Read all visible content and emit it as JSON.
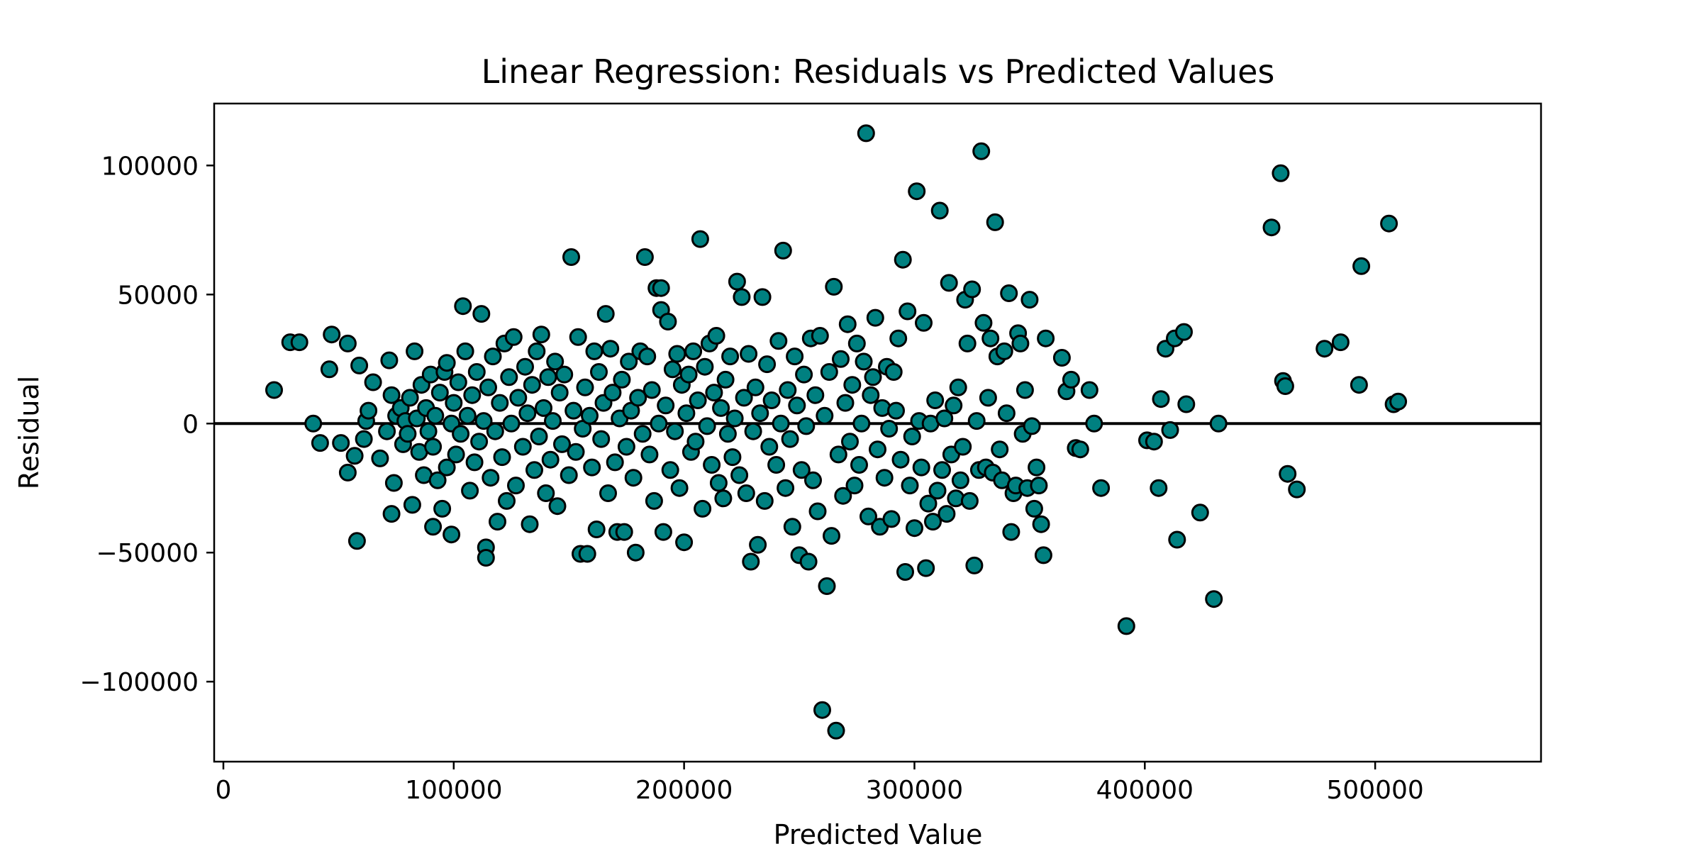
{
  "chart_data": {
    "type": "scatter",
    "title": "Linear Regression: Residuals vs Predicted Values",
    "xlabel": "Predicted Value",
    "ylabel": "Residual",
    "xlim": [
      -4000,
      572000
    ],
    "ylim": [
      -131000,
      124000
    ],
    "xticks": [
      0,
      100000,
      200000,
      300000,
      400000,
      500000
    ],
    "xtick_labels": [
      "0",
      "100000",
      "200000",
      "300000",
      "400000",
      "500000"
    ],
    "yticks": [
      -100000,
      -50000,
      0,
      50000,
      100000
    ],
    "ytick_labels": [
      "−100000",
      "−50000",
      "0",
      "50000",
      "100000"
    ],
    "grid": false,
    "legend": "none",
    "reference_line": {
      "y": 0,
      "color": "#000000"
    },
    "marker": {
      "fill": "#008080",
      "edge": "#000000"
    },
    "points": [
      [
        22000,
        13000
      ],
      [
        29000,
        31500
      ],
      [
        33000,
        31500
      ],
      [
        39000,
        0
      ],
      [
        42000,
        -7500
      ],
      [
        46000,
        21000
      ],
      [
        47000,
        34500
      ],
      [
        51000,
        -7500
      ],
      [
        54000,
        31000
      ],
      [
        54000,
        -19000
      ],
      [
        57000,
        -12500
      ],
      [
        58000,
        -45500
      ],
      [
        59000,
        22500
      ],
      [
        61000,
        -6000
      ],
      [
        62000,
        1000
      ],
      [
        63000,
        5000
      ],
      [
        65000,
        16000
      ],
      [
        68000,
        -13500
      ],
      [
        71000,
        -3000
      ],
      [
        72000,
        24500
      ],
      [
        73000,
        -35000
      ],
      [
        73000,
        11000
      ],
      [
        74000,
        -23000
      ],
      [
        75000,
        3000
      ],
      [
        77000,
        6000
      ],
      [
        78000,
        -8000
      ],
      [
        79000,
        1000
      ],
      [
        80000,
        -4000
      ],
      [
        81000,
        10000
      ],
      [
        82000,
        -31500
      ],
      [
        83000,
        28000
      ],
      [
        84000,
        2000
      ],
      [
        85000,
        -11000
      ],
      [
        86000,
        15000
      ],
      [
        87000,
        -20000
      ],
      [
        88000,
        6000
      ],
      [
        89000,
        -3000
      ],
      [
        90000,
        19000
      ],
      [
        91000,
        -40000
      ],
      [
        91000,
        -9000
      ],
      [
        92000,
        3000
      ],
      [
        93000,
        -22000
      ],
      [
        94000,
        12000
      ],
      [
        95000,
        -33000
      ],
      [
        96000,
        20000
      ],
      [
        97000,
        -17000
      ],
      [
        97000,
        23500
      ],
      [
        99000,
        0
      ],
      [
        99000,
        -43000
      ],
      [
        100000,
        8000
      ],
      [
        101000,
        -12000
      ],
      [
        102000,
        16000
      ],
      [
        103000,
        -4000
      ],
      [
        104000,
        45500
      ],
      [
        105000,
        28000
      ],
      [
        106000,
        3000
      ],
      [
        107000,
        -26000
      ],
      [
        108000,
        11000
      ],
      [
        109000,
        -15000
      ],
      [
        110000,
        20000
      ],
      [
        111000,
        -7000
      ],
      [
        112000,
        42500
      ],
      [
        113000,
        1000
      ],
      [
        114000,
        -48000
      ],
      [
        114000,
        -52000
      ],
      [
        115000,
        14000
      ],
      [
        116000,
        -21000
      ],
      [
        117000,
        26000
      ],
      [
        118000,
        -3000
      ],
      [
        119000,
        -38000
      ],
      [
        120000,
        8000
      ],
      [
        121000,
        -13000
      ],
      [
        122000,
        31000
      ],
      [
        123000,
        -30000
      ],
      [
        124000,
        18000
      ],
      [
        125000,
        0
      ],
      [
        126000,
        33500
      ],
      [
        127000,
        -24000
      ],
      [
        128000,
        10000
      ],
      [
        130000,
        -9000
      ],
      [
        131000,
        22000
      ],
      [
        132000,
        4000
      ],
      [
        133000,
        -39000
      ],
      [
        134000,
        15000
      ],
      [
        135000,
        -18000
      ],
      [
        136000,
        28000
      ],
      [
        137000,
        -5000
      ],
      [
        138000,
        34500
      ],
      [
        139000,
        6000
      ],
      [
        140000,
        -27000
      ],
      [
        141000,
        18000
      ],
      [
        142000,
        -14000
      ],
      [
        143000,
        1000
      ],
      [
        144000,
        24000
      ],
      [
        145000,
        -32000
      ],
      [
        146000,
        12000
      ],
      [
        147000,
        -8000
      ],
      [
        148000,
        19000
      ],
      [
        150000,
        -20000
      ],
      [
        151000,
        64500
      ],
      [
        152000,
        5000
      ],
      [
        153000,
        -11000
      ],
      [
        154000,
        33500
      ],
      [
        155000,
        -50500
      ],
      [
        156000,
        -2000
      ],
      [
        157000,
        14000
      ],
      [
        158000,
        -50500
      ],
      [
        159000,
        3000
      ],
      [
        160000,
        -17000
      ],
      [
        161000,
        28000
      ],
      [
        162000,
        -41000
      ],
      [
        163000,
        20000
      ],
      [
        164000,
        -6000
      ],
      [
        165000,
        8000
      ],
      [
        166000,
        42500
      ],
      [
        167000,
        -27000
      ],
      [
        168000,
        29000
      ],
      [
        169000,
        12000
      ],
      [
        170000,
        -15000
      ],
      [
        171000,
        -42000
      ],
      [
        172000,
        2000
      ],
      [
        173000,
        17000
      ],
      [
        174000,
        -42000
      ],
      [
        175000,
        -9000
      ],
      [
        176000,
        24000
      ],
      [
        177000,
        5000
      ],
      [
        178000,
        -21000
      ],
      [
        179000,
        -50000
      ],
      [
        180000,
        10000
      ],
      [
        181000,
        28000
      ],
      [
        182000,
        -4000
      ],
      [
        183000,
        64500
      ],
      [
        184000,
        26000
      ],
      [
        185000,
        -12000
      ],
      [
        186000,
        13000
      ],
      [
        187000,
        -30000
      ],
      [
        188000,
        52500
      ],
      [
        189000,
        0
      ],
      [
        190000,
        44000
      ],
      [
        190000,
        52500
      ],
      [
        191000,
        -42000
      ],
      [
        192000,
        7000
      ],
      [
        193000,
        39500
      ],
      [
        194000,
        -18000
      ],
      [
        195000,
        21000
      ],
      [
        196000,
        -3000
      ],
      [
        197000,
        27000
      ],
      [
        198000,
        -25000
      ],
      [
        199000,
        15000
      ],
      [
        200000,
        -46000
      ],
      [
        201000,
        4000
      ],
      [
        202000,
        19000
      ],
      [
        203000,
        -11000
      ],
      [
        204000,
        28000
      ],
      [
        205000,
        -7000
      ],
      [
        206000,
        9000
      ],
      [
        207000,
        71500
      ],
      [
        208000,
        -33000
      ],
      [
        209000,
        22000
      ],
      [
        210000,
        -1000
      ],
      [
        211000,
        31000
      ],
      [
        212000,
        -16000
      ],
      [
        213000,
        12000
      ],
      [
        214000,
        34000
      ],
      [
        215000,
        -23000
      ],
      [
        216000,
        6000
      ],
      [
        217000,
        -29000
      ],
      [
        218000,
        17000
      ],
      [
        219000,
        -4000
      ],
      [
        220000,
        26000
      ],
      [
        221000,
        -13000
      ],
      [
        222000,
        2000
      ],
      [
        223000,
        55000
      ],
      [
        224000,
        -20000
      ],
      [
        225000,
        49000
      ],
      [
        226000,
        10000
      ],
      [
        227000,
        -27000
      ],
      [
        228000,
        27000
      ],
      [
        229000,
        -53500
      ],
      [
        230000,
        -3000
      ],
      [
        231000,
        14000
      ],
      [
        232000,
        -47000
      ],
      [
        233000,
        4000
      ],
      [
        234000,
        49000
      ],
      [
        235000,
        -30000
      ],
      [
        236000,
        23000
      ],
      [
        237000,
        -9000
      ],
      [
        238000,
        9000
      ],
      [
        240000,
        -16000
      ],
      [
        241000,
        32000
      ],
      [
        242000,
        0
      ],
      [
        243000,
        67000
      ],
      [
        244000,
        -25000
      ],
      [
        245000,
        13000
      ],
      [
        246000,
        -6000
      ],
      [
        247000,
        -40000
      ],
      [
        248000,
        26000
      ],
      [
        249000,
        7000
      ],
      [
        250000,
        -51000
      ],
      [
        251000,
        -18000
      ],
      [
        252000,
        19000
      ],
      [
        253000,
        -1000
      ],
      [
        254000,
        -53500
      ],
      [
        255000,
        33000
      ],
      [
        256000,
        -22000
      ],
      [
        257000,
        11000
      ],
      [
        258000,
        -34000
      ],
      [
        259000,
        34000
      ],
      [
        260000,
        -111000
      ],
      [
        261000,
        3000
      ],
      [
        262000,
        -63000
      ],
      [
        263000,
        20000
      ],
      [
        264000,
        -43500
      ],
      [
        265000,
        53000
      ],
      [
        266000,
        -119000
      ],
      [
        267000,
        -12000
      ],
      [
        268000,
        25000
      ],
      [
        269000,
        -28000
      ],
      [
        270000,
        8000
      ],
      [
        271000,
        38500
      ],
      [
        272000,
        -7000
      ],
      [
        273000,
        15000
      ],
      [
        274000,
        -24000
      ],
      [
        275000,
        31000
      ],
      [
        276000,
        -16000
      ],
      [
        277000,
        0
      ],
      [
        278000,
        24000
      ],
      [
        279000,
        112500
      ],
      [
        280000,
        -36000
      ],
      [
        281000,
        11000
      ],
      [
        282000,
        18000
      ],
      [
        283000,
        41000
      ],
      [
        284000,
        -10000
      ],
      [
        285000,
        -40000
      ],
      [
        286000,
        6000
      ],
      [
        287000,
        -21000
      ],
      [
        288000,
        22000
      ],
      [
        289000,
        -2000
      ],
      [
        290000,
        -37000
      ],
      [
        291000,
        20000
      ],
      [
        292000,
        5000
      ],
      [
        293000,
        33000
      ],
      [
        294000,
        -14000
      ],
      [
        295000,
        63500
      ],
      [
        296000,
        -57500
      ],
      [
        297000,
        43500
      ],
      [
        298000,
        -24000
      ],
      [
        299000,
        -5000
      ],
      [
        300000,
        -40500
      ],
      [
        301000,
        90000
      ],
      [
        302000,
        1000
      ],
      [
        303000,
        -17000
      ],
      [
        304000,
        39000
      ],
      [
        305000,
        -56000
      ],
      [
        306000,
        -31000
      ],
      [
        307000,
        0
      ],
      [
        308000,
        -38000
      ],
      [
        309000,
        9000
      ],
      [
        310000,
        -26000
      ],
      [
        311000,
        82500
      ],
      [
        312000,
        -18000
      ],
      [
        313000,
        2000
      ],
      [
        314000,
        -35000
      ],
      [
        315000,
        54500
      ],
      [
        316000,
        -12000
      ],
      [
        317000,
        7000
      ],
      [
        318000,
        -29000
      ],
      [
        319000,
        14000
      ],
      [
        320000,
        -22000
      ],
      [
        321000,
        -9000
      ],
      [
        322000,
        48000
      ],
      [
        323000,
        31000
      ],
      [
        324000,
        -30000
      ],
      [
        325000,
        52000
      ],
      [
        326000,
        -55000
      ],
      [
        327000,
        1000
      ],
      [
        328000,
        -18000
      ],
      [
        329000,
        105500
      ],
      [
        330000,
        39000
      ],
      [
        331000,
        -17000
      ],
      [
        332000,
        10000
      ],
      [
        333000,
        33000
      ],
      [
        334000,
        -19000
      ],
      [
        335000,
        78000
      ],
      [
        336000,
        26000
      ],
      [
        337000,
        -10000
      ],
      [
        338000,
        -22000
      ],
      [
        339000,
        28000
      ],
      [
        340000,
        4000
      ],
      [
        341000,
        50500
      ],
      [
        342000,
        -42000
      ],
      [
        343000,
        -27000
      ],
      [
        344000,
        -24000
      ],
      [
        345000,
        35000
      ],
      [
        346000,
        31000
      ],
      [
        347000,
        -4000
      ],
      [
        348000,
        13000
      ],
      [
        349000,
        -25000
      ],
      [
        350000,
        48000
      ],
      [
        351000,
        -1000
      ],
      [
        352000,
        -33000
      ],
      [
        353000,
        -17000
      ],
      [
        354000,
        -24000
      ],
      [
        355000,
        -39000
      ],
      [
        356000,
        -51000
      ],
      [
        357000,
        33000
      ],
      [
        364000,
        25500
      ],
      [
        366000,
        12500
      ],
      [
        368000,
        17000
      ],
      [
        370000,
        -9500
      ],
      [
        372000,
        -10000
      ],
      [
        376000,
        13000
      ],
      [
        378000,
        0
      ],
      [
        381000,
        -25000
      ],
      [
        392000,
        -78500
      ],
      [
        401000,
        -6500
      ],
      [
        404000,
        -7000
      ],
      [
        406000,
        -25000
      ],
      [
        407000,
        9500
      ],
      [
        409000,
        29000
      ],
      [
        411000,
        -2500
      ],
      [
        413000,
        33000
      ],
      [
        414000,
        -45000
      ],
      [
        417000,
        35500
      ],
      [
        418000,
        7500
      ],
      [
        424000,
        -34500
      ],
      [
        430000,
        -68000
      ],
      [
        432000,
        0
      ],
      [
        455000,
        76000
      ],
      [
        459000,
        97000
      ],
      [
        460000,
        16500
      ],
      [
        461000,
        14500
      ],
      [
        462000,
        -19500
      ],
      [
        466000,
        -25500
      ],
      [
        478000,
        29000
      ],
      [
        485000,
        31500
      ],
      [
        493000,
        15000
      ],
      [
        494000,
        61000
      ],
      [
        506000,
        77500
      ],
      [
        508000,
        7500
      ],
      [
        510000,
        8500
      ]
    ]
  }
}
